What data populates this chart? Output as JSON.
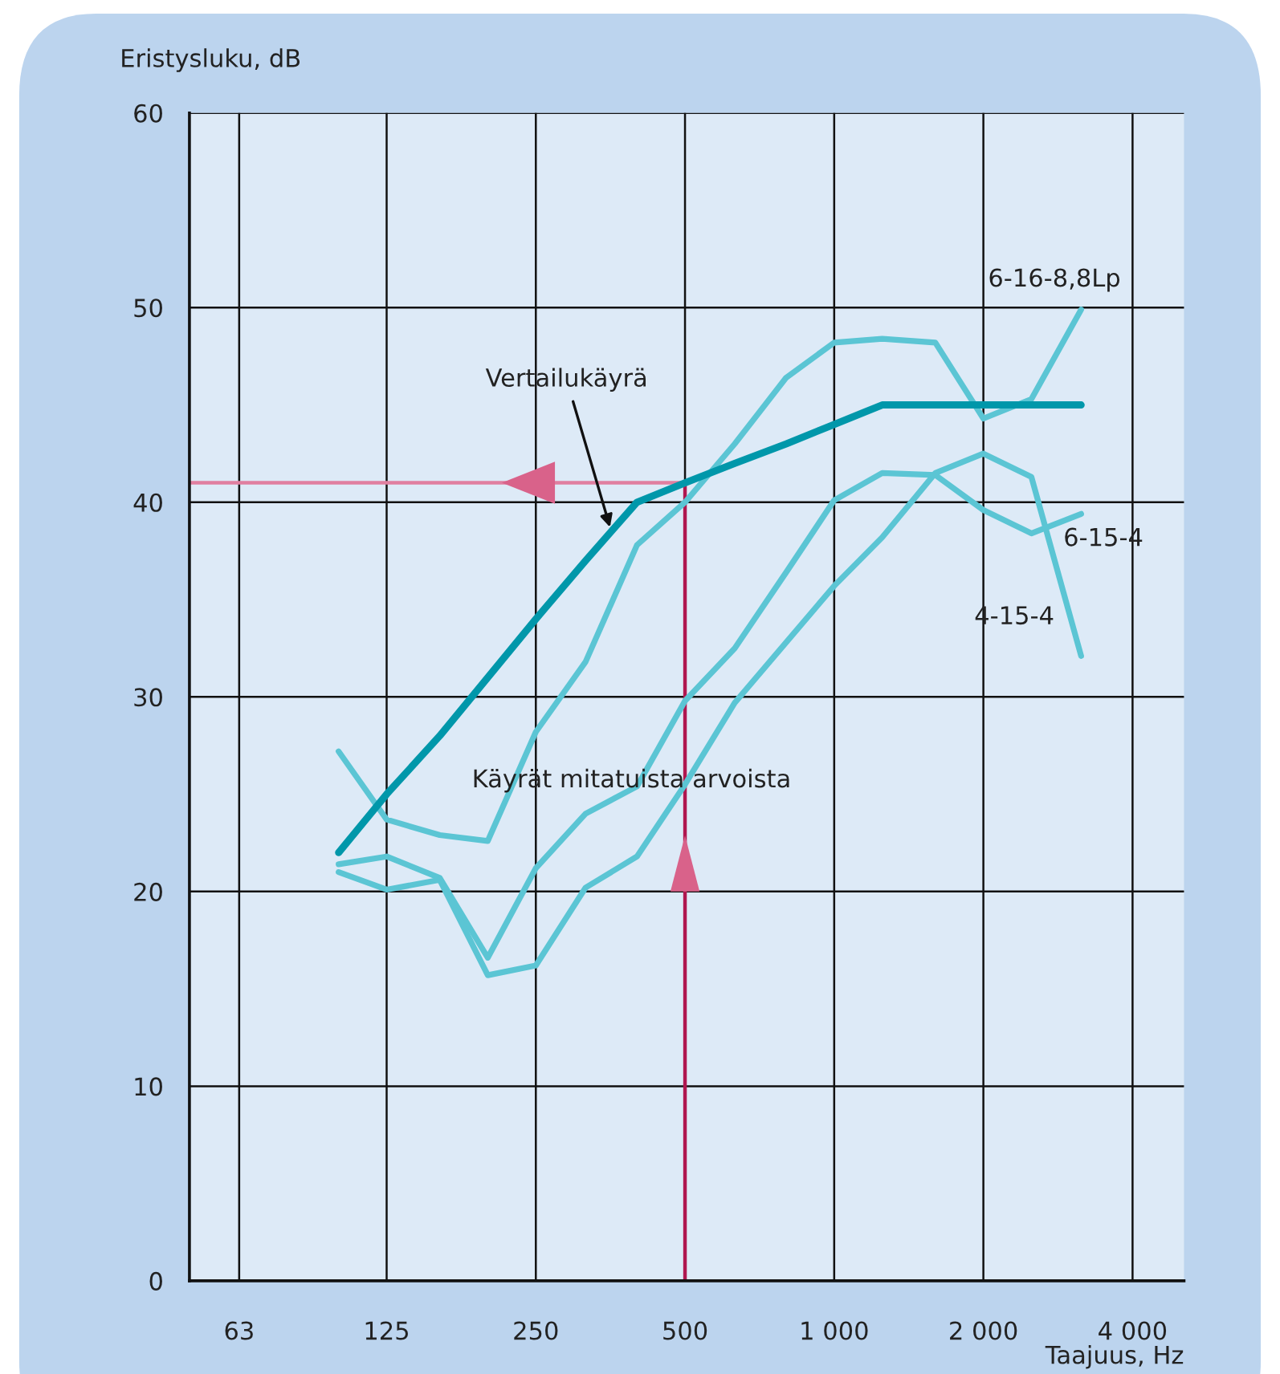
{
  "chart_data": {
    "type": "line",
    "xlabel": "Taajuus, Hz",
    "ylabel": "Eristysluku, dB",
    "log": "x",
    "xlim": [
      50,
      5080
    ],
    "ylim": [
      0,
      60
    ],
    "xticks": [
      63,
      125,
      250,
      500,
      {
        "value": 1000,
        "label": "1 000"
      },
      {
        "value": 2000,
        "label": "2 000"
      },
      {
        "value": 4000,
        "label": "4 000"
      }
    ],
    "yticks": [
      0,
      10,
      20,
      30,
      40,
      50,
      60
    ],
    "grid": true,
    "legend": false,
    "marker": "none",
    "line_style": "solid",
    "x": [
      100,
      125,
      160,
      200,
      250,
      315,
      400,
      500,
      630,
      800,
      1000,
      1250,
      1600,
      2000,
      2500,
      3150
    ],
    "series": [
      {
        "name": "Vertailukäyrä",
        "color": "#0097aa",
        "values": [
          22,
          25,
          28,
          31,
          34,
          37,
          40,
          41,
          42,
          43,
          44,
          45,
          45,
          45,
          45,
          45
        ]
      },
      {
        "name": "6-16-8,8Lp",
        "color": "#5bc5d4",
        "values": [
          27.2,
          23.7,
          22.9,
          22.6,
          28.2,
          31.8,
          37.8,
          40.0,
          43.0,
          46.4,
          48.2,
          48.4,
          48.2,
          44.3,
          45.3,
          49.9
        ]
      },
      {
        "name": "6-15-4",
        "color": "#5bc5d4",
        "values": [
          21.4,
          21.8,
          20.7,
          16.6,
          21.2,
          24.0,
          25.4,
          29.8,
          32.5,
          36.4,
          40.1,
          41.5,
          41.4,
          39.6,
          38.4,
          39.4
        ]
      },
      {
        "name": "4-15-4",
        "color": "#5bc5d4",
        "values": [
          21.0,
          20.1,
          20.6,
          15.7,
          16.2,
          20.2,
          21.8,
          25.5,
          29.7,
          32.8,
          35.7,
          38.2,
          41.5,
          42.5,
          41.3,
          32.1
        ]
      }
    ],
    "ref_lines": [
      {
        "axis": "y",
        "value": 41,
        "color": "#e07fa0"
      },
      {
        "axis": "x",
        "value": 500,
        "color": "#b0174f"
      }
    ],
    "annotations": [
      {
        "text": "Käyrät mitatuista arvoista",
        "x": 390,
        "y": 25.7
      }
    ]
  }
}
